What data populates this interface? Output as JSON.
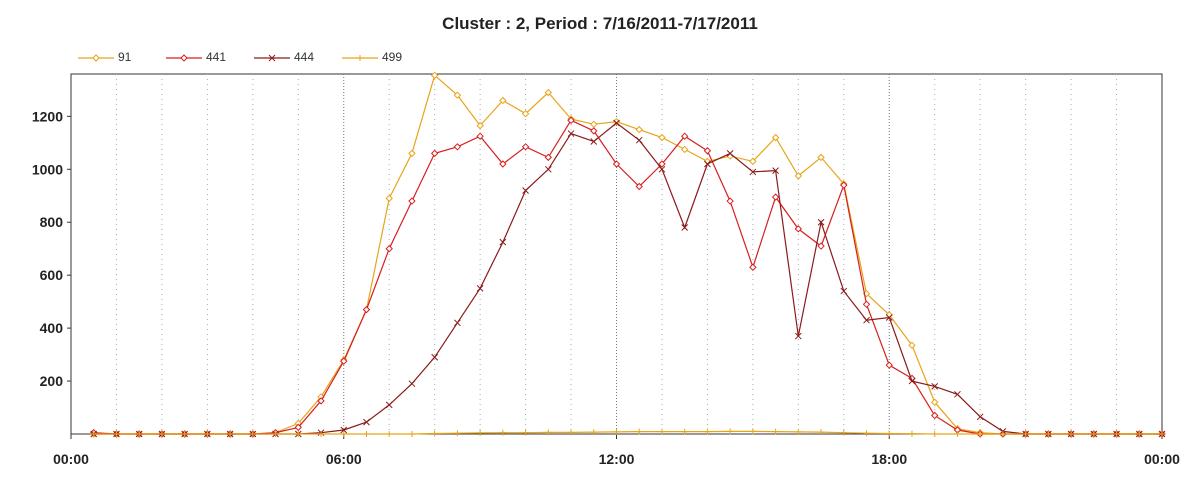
{
  "chart_data": {
    "type": "line",
    "title": "Cluster : 2, Period : 7/16/2011-7/17/2011",
    "xlabel": "",
    "ylabel": "",
    "xlim_hours": [
      0,
      24
    ],
    "ylim": [
      0,
      1360
    ],
    "x_ticks": [
      "00:00",
      "06:00",
      "12:00",
      "18:00",
      "00:00"
    ],
    "y_ticks": [
      200,
      400,
      600,
      800,
      1000,
      1200
    ],
    "grid": "vertical dotted, hourly",
    "legend_position": "top-left",
    "x_hours": [
      0.5,
      1,
      1.5,
      2,
      2.5,
      3,
      3.5,
      4,
      4.5,
      5,
      5.5,
      6,
      6.5,
      7,
      7.5,
      8,
      8.5,
      9,
      9.5,
      10,
      10.5,
      11,
      11.5,
      12,
      12.5,
      13,
      13.5,
      14,
      14.5,
      15,
      15.5,
      16,
      16.5,
      17,
      17.5,
      18,
      18.5,
      19,
      19.5,
      20,
      20.5,
      21,
      21.5,
      22,
      22.5,
      23,
      23.5,
      24
    ],
    "series": [
      {
        "name": "91",
        "color": "#e8a317",
        "marker": "diamond",
        "values": [
          0,
          0,
          0,
          0,
          0,
          0,
          0,
          0,
          5,
          40,
          140,
          280,
          470,
          890,
          1060,
          1355,
          1280,
          1165,
          1260,
          1210,
          1290,
          1190,
          1170,
          1180,
          1150,
          1120,
          1075,
          1030,
          1050,
          1030,
          1120,
          975,
          1045,
          945,
          530,
          450,
          335,
          120,
          20,
          5,
          0,
          0,
          0,
          0,
          0,
          0,
          0,
          0
        ]
      },
      {
        "name": "441",
        "color": "#d81e1e",
        "marker": "diamond",
        "values": [
          5,
          0,
          0,
          0,
          0,
          0,
          0,
          0,
          5,
          25,
          125,
          275,
          470,
          700,
          880,
          1060,
          1085,
          1125,
          1020,
          1085,
          1045,
          1185,
          1145,
          1020,
          935,
          1020,
          1125,
          1070,
          880,
          630,
          895,
          775,
          710,
          940,
          490,
          260,
          210,
          70,
          15,
          0,
          0,
          0,
          0,
          0,
          0,
          0,
          0,
          0
        ]
      },
      {
        "name": "444",
        "color": "#8b1a1a",
        "marker": "x",
        "values": [
          0,
          0,
          0,
          0,
          0,
          0,
          0,
          0,
          0,
          0,
          5,
          15,
          45,
          110,
          190,
          290,
          420,
          550,
          725,
          920,
          1000,
          1135,
          1105,
          1175,
          1110,
          1000,
          780,
          1020,
          1060,
          990,
          995,
          370,
          800,
          540,
          430,
          440,
          200,
          180,
          150,
          65,
          10,
          0,
          0,
          0,
          0,
          0,
          0,
          0
        ]
      },
      {
        "name": "499",
        "color": "#e8a317",
        "marker": "plus",
        "values": [
          0,
          0,
          0,
          0,
          0,
          0,
          0,
          0,
          0,
          0,
          0,
          0,
          0,
          0,
          0,
          2,
          3,
          4,
          5,
          5,
          6,
          6,
          7,
          8,
          9,
          9,
          9,
          9,
          10,
          10,
          9,
          8,
          7,
          5,
          3,
          2,
          1,
          0,
          0,
          0,
          0,
          0,
          0,
          0,
          0,
          0,
          0,
          0
        ]
      }
    ]
  }
}
